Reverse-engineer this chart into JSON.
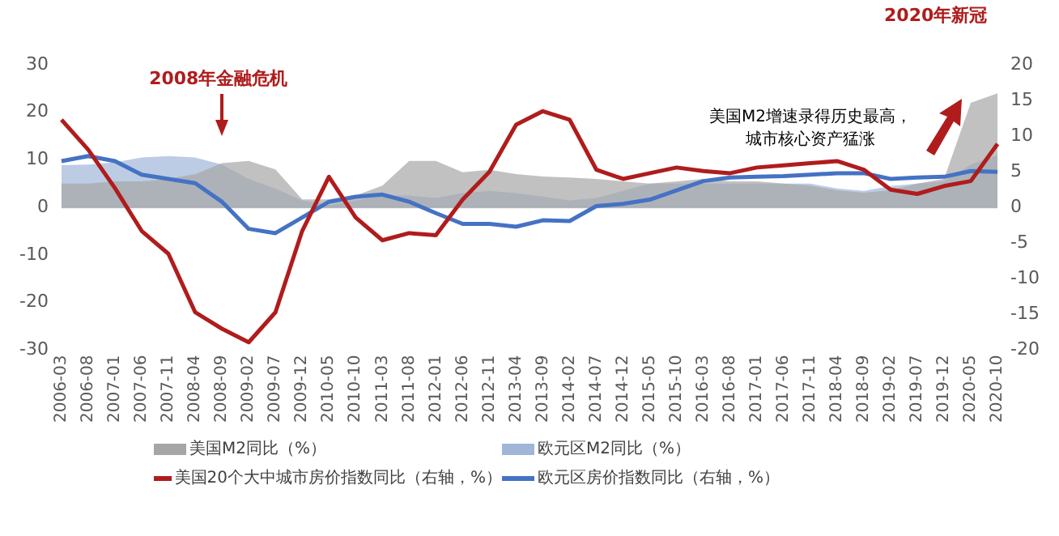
{
  "chart_data": {
    "type": "line",
    "categories": [
      "2006-03",
      "2006-08",
      "2007-01",
      "2007-06",
      "2007-11",
      "2008-04",
      "2008-09",
      "2009-02",
      "2009-07",
      "2009-12",
      "2010-05",
      "2010-10",
      "2011-03",
      "2011-08",
      "2012-01",
      "2012-06",
      "2012-11",
      "2013-04",
      "2013-09",
      "2014-02",
      "2014-07",
      "2014-12",
      "2015-05",
      "2015-10",
      "2016-03",
      "2016-08",
      "2017-01",
      "2017-06",
      "2017-11",
      "2018-04",
      "2018-09",
      "2019-02",
      "2019-07",
      "2019-12",
      "2020-05",
      "2020-10"
    ],
    "series": [
      {
        "name": "美国M2同比（%）",
        "type": "area",
        "color": "#a6a6a6",
        "values": [
          5,
          5,
          5.5,
          5.5,
          6,
          7,
          9.3,
          9.8,
          8,
          1.7,
          1.7,
          2.5,
          4.6,
          9.8,
          9.8,
          7.4,
          7.9,
          7,
          6.5,
          6.3,
          6,
          5.5,
          5,
          5.5,
          6,
          5.5,
          5.5,
          5,
          4.6,
          3.6,
          3.1,
          3.6,
          5,
          6,
          22,
          24
        ]
      },
      {
        "name": "欧元区M2同比（%）",
        "type": "area",
        "color": "#9fb6d9",
        "values": [
          8.9,
          9,
          9.5,
          10.5,
          10.8,
          10.5,
          9,
          6,
          4,
          1.5,
          0.5,
          1.5,
          2.5,
          2.5,
          2,
          3,
          3.5,
          3,
          2.3,
          1.5,
          2,
          3.5,
          5,
          5,
          5,
          5,
          5,
          5,
          5,
          4,
          3.5,
          4.5,
          5,
          5.5,
          9,
          11
        ]
      },
      {
        "name": "美国20个大中城市房价指数同比（右轴，%）",
        "type": "line",
        "axis": "y2",
        "color": "#b01c1c",
        "values": [
          12.3,
          8.1,
          2.7,
          -3.3,
          -6.5,
          -14.7,
          -17,
          -18.9,
          -14.7,
          -3.3,
          4.3,
          -1.4,
          -4.6,
          -3.6,
          -3.9,
          1.1,
          5,
          11.6,
          13.5,
          12.3,
          5.3,
          4,
          4.8,
          5.6,
          5.1,
          4.8,
          5.6,
          5.9,
          6.2,
          6.5,
          5.3,
          2.5,
          1.9,
          3,
          3.7,
          8.9
        ]
      },
      {
        "name": "欧元区房价指数同比（右轴，%）",
        "type": "line",
        "axis": "y2",
        "color": "#4472c4",
        "values": [
          6.5,
          7.2,
          6.5,
          4.6,
          4,
          3.4,
          0.8,
          -3,
          -3.6,
          -1.4,
          0.8,
          1.5,
          1.8,
          0.8,
          -0.8,
          -2.3,
          -2.3,
          -2.7,
          -1.8,
          -1.9,
          0.2,
          0.5,
          1.1,
          2.4,
          3.7,
          4.2,
          4.3,
          4.4,
          4.6,
          4.8,
          4.8,
          4,
          4.2,
          4.3,
          5.1,
          5
        ]
      }
    ],
    "ylim": [
      -30,
      30
    ],
    "yticks": [
      -30,
      -20,
      -10,
      0,
      10,
      20,
      30
    ],
    "y2lim": [
      -20,
      20
    ],
    "y2ticks": [
      -20,
      -15,
      -10,
      -5,
      0,
      5,
      10,
      15,
      20
    ],
    "ref_lines": [
      {
        "axis": "y",
        "value": 0,
        "color": "#bfbfbf"
      }
    ],
    "grid": false,
    "legend": "bottom",
    "marker": "none",
    "line_style": "solid",
    "annotations": [
      "2008年金融危机",
      "2020年新冠",
      "美国M2增速录得历史最高，城市核心资产猛涨"
    ]
  }
}
